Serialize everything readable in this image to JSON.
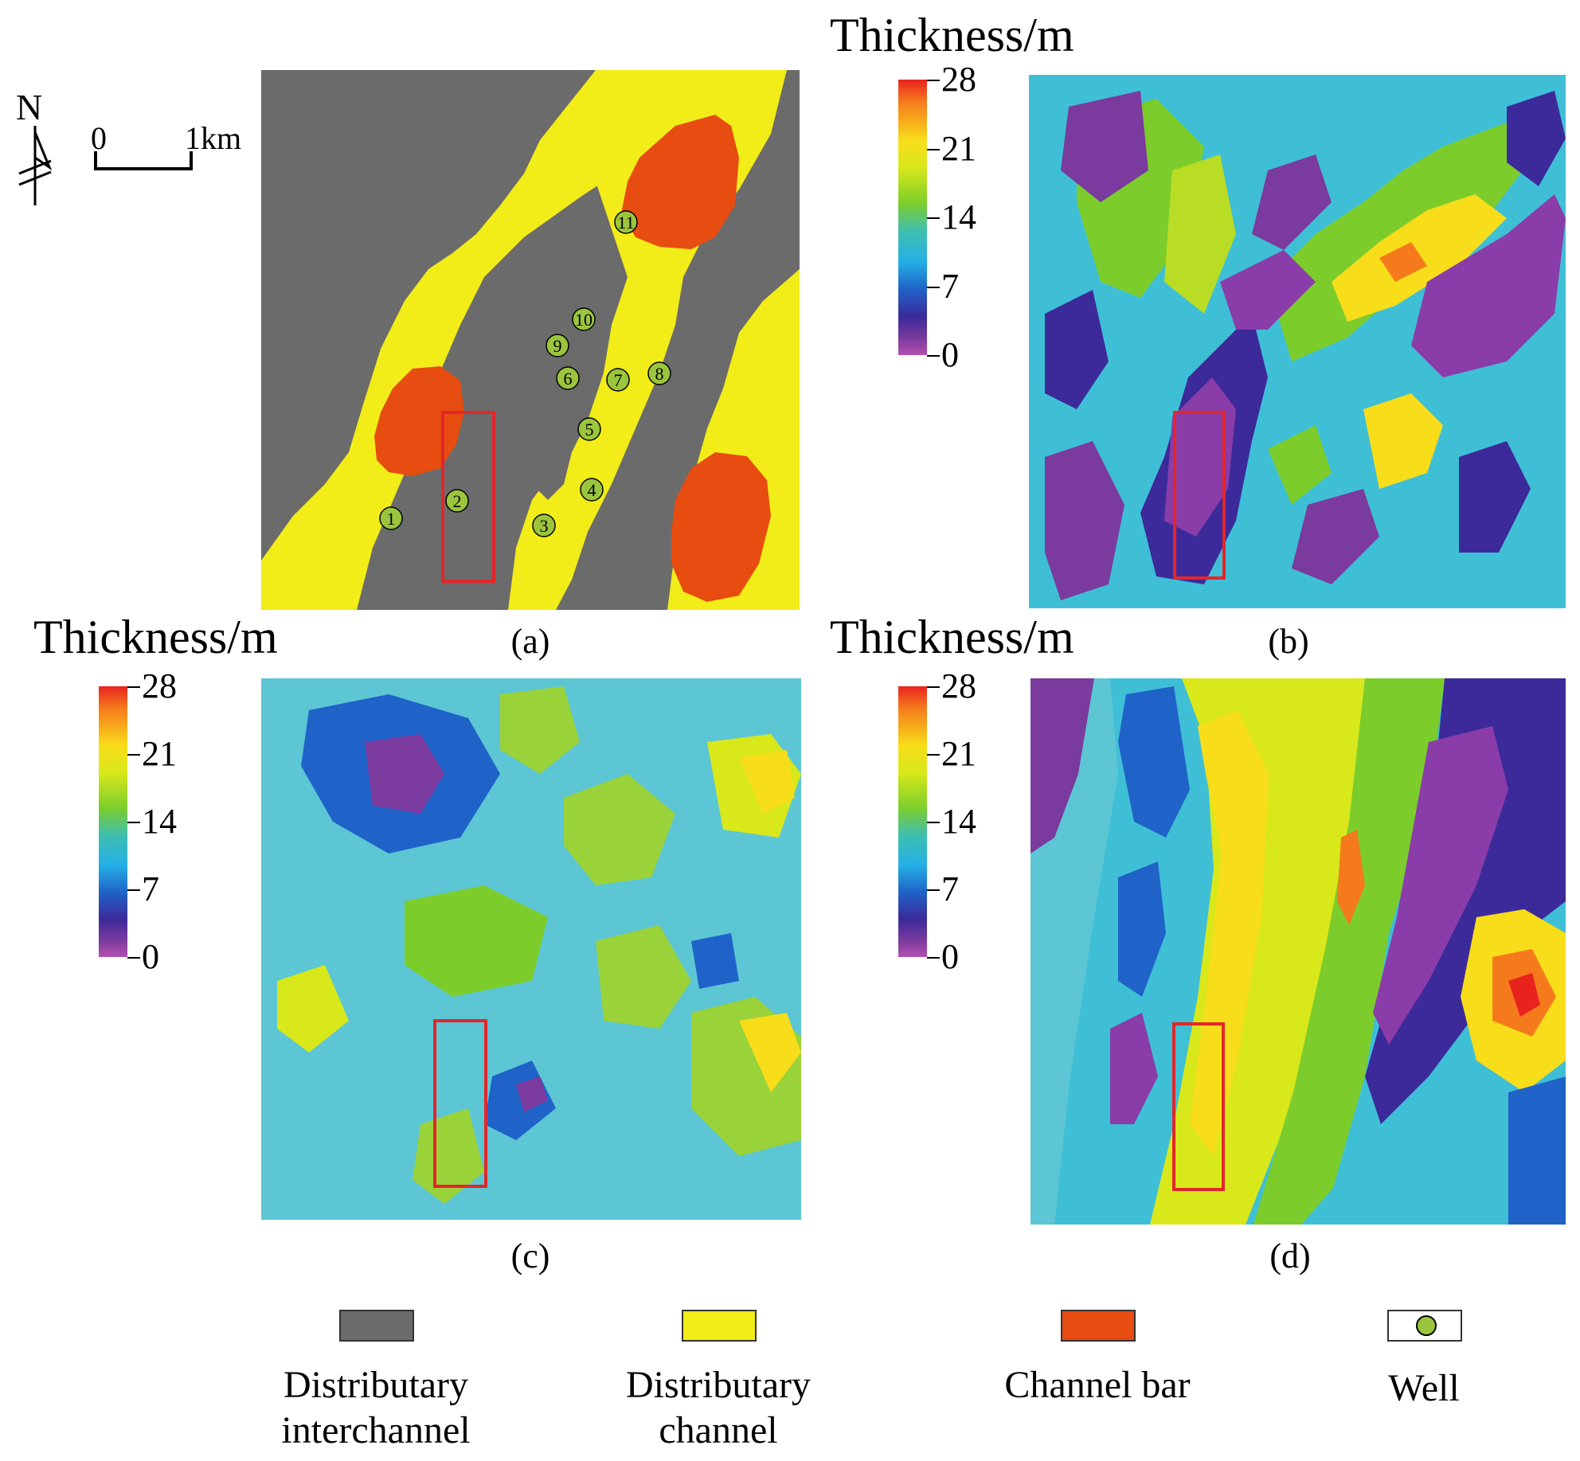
{
  "panels": {
    "a": {
      "caption": "(a)"
    },
    "b": {
      "caption": "(b)"
    },
    "c": {
      "caption": "(c)"
    },
    "d": {
      "caption": "(d)"
    }
  },
  "colorbar": {
    "title": "Thickness/m",
    "ticks": [
      "28",
      "21",
      "14",
      "7",
      "0"
    ]
  },
  "north_arrow": {
    "label": "N"
  },
  "scale_bar": {
    "start_label": "0",
    "end_label": "1km"
  },
  "wells": [
    "1",
    "2",
    "3",
    "4",
    "5",
    "6",
    "7",
    "8",
    "9",
    "10",
    "11"
  ],
  "legend": {
    "items": [
      {
        "line1": "Distributary",
        "line2": "interchannel",
        "color": "#6b6b6b"
      },
      {
        "line1": "Distributary",
        "line2": "channel",
        "color": "#f2ec19"
      },
      {
        "line1": "Channel bar",
        "line2": "",
        "color": "#e74c10"
      },
      {
        "line1": "Well",
        "line2": "",
        "color": "#9bc53d"
      }
    ]
  },
  "colors": {
    "interchannel": "#6b6b6b",
    "channel": "#f2ec19",
    "bar": "#e74c10",
    "well": "#9bc53d",
    "highlight_box": "#e3262a"
  }
}
